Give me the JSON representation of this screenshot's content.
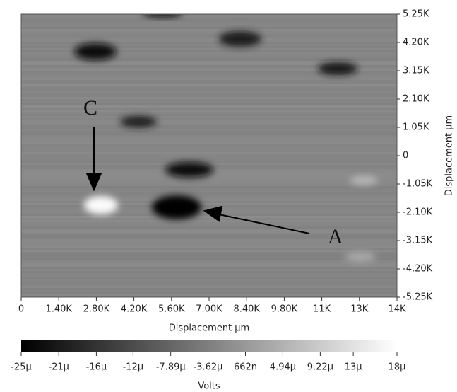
{
  "chart_data": {
    "type": "heatmap",
    "x_label": "Displacement µm",
    "y_label": "Displacement µm",
    "xlim": [
      0,
      14000
    ],
    "xticks": [
      0,
      {
        "value": 1400,
        "label": "1.40K"
      },
      {
        "value": 2800,
        "label": "2.80K"
      },
      {
        "value": 4200,
        "label": "4.20K"
      },
      {
        "value": 5600,
        "label": "5.60K"
      },
      {
        "value": 7000,
        "label": "7.00K"
      },
      {
        "value": 8400,
        "label": "8.40K"
      },
      {
        "value": 9800,
        "label": "9.80K"
      },
      {
        "value": 11200,
        "label": "11K"
      },
      {
        "value": 12600,
        "label": "13K"
      },
      {
        "value": 14000,
        "label": "14K"
      }
    ],
    "ylim": [
      -5250,
      5250
    ],
    "yticks": [
      {
        "value": 5250,
        "label": "5.25K"
      },
      {
        "value": 4200,
        "label": "4.20K"
      },
      {
        "value": 3150,
        "label": "3.15K"
      },
      {
        "value": 2100,
        "label": "2.10K"
      },
      {
        "value": 1050,
        "label": "1.05K"
      },
      0,
      {
        "value": -1050,
        "label": "-1.05K"
      },
      {
        "value": -2100,
        "label": "-2.10K"
      },
      {
        "value": -3150,
        "label": "-3.15K"
      },
      {
        "value": -4200,
        "label": "-4.20K"
      },
      {
        "value": -5250,
        "label": "-5.25K"
      }
    ],
    "colorbar": {
      "label": "Volts",
      "colors": [
        "#000000",
        "#ffffff"
      ],
      "lim": [
        -2.5e-05,
        1.8e-05
      ],
      "ticks": [
        {
          "value": -2.5e-05,
          "label": "-25µ"
        },
        {
          "value": -2.07e-05,
          "label": "-21µ"
        },
        {
          "value": -1.64e-05,
          "label": "-16µ"
        },
        {
          "value": -1.22e-05,
          "label": "-12µ"
        },
        {
          "value": -7.89e-06,
          "label": "-7.89µ"
        },
        {
          "value": -3.62e-06,
          "label": "-3.62µ"
        },
        {
          "value": 6.62e-07,
          "label": "662n"
        },
        {
          "value": 4.94e-06,
          "label": "4.94µ"
        },
        {
          "value": 9.22e-06,
          "label": "9.22µ"
        },
        {
          "value": 1.3e-05,
          "label": "13µ"
        },
        {
          "value": 1.8e-05,
          "label": "18µ"
        }
      ]
    },
    "annotations": [
      {
        "text": "A"
      },
      {
        "text": "C"
      }
    ]
  }
}
